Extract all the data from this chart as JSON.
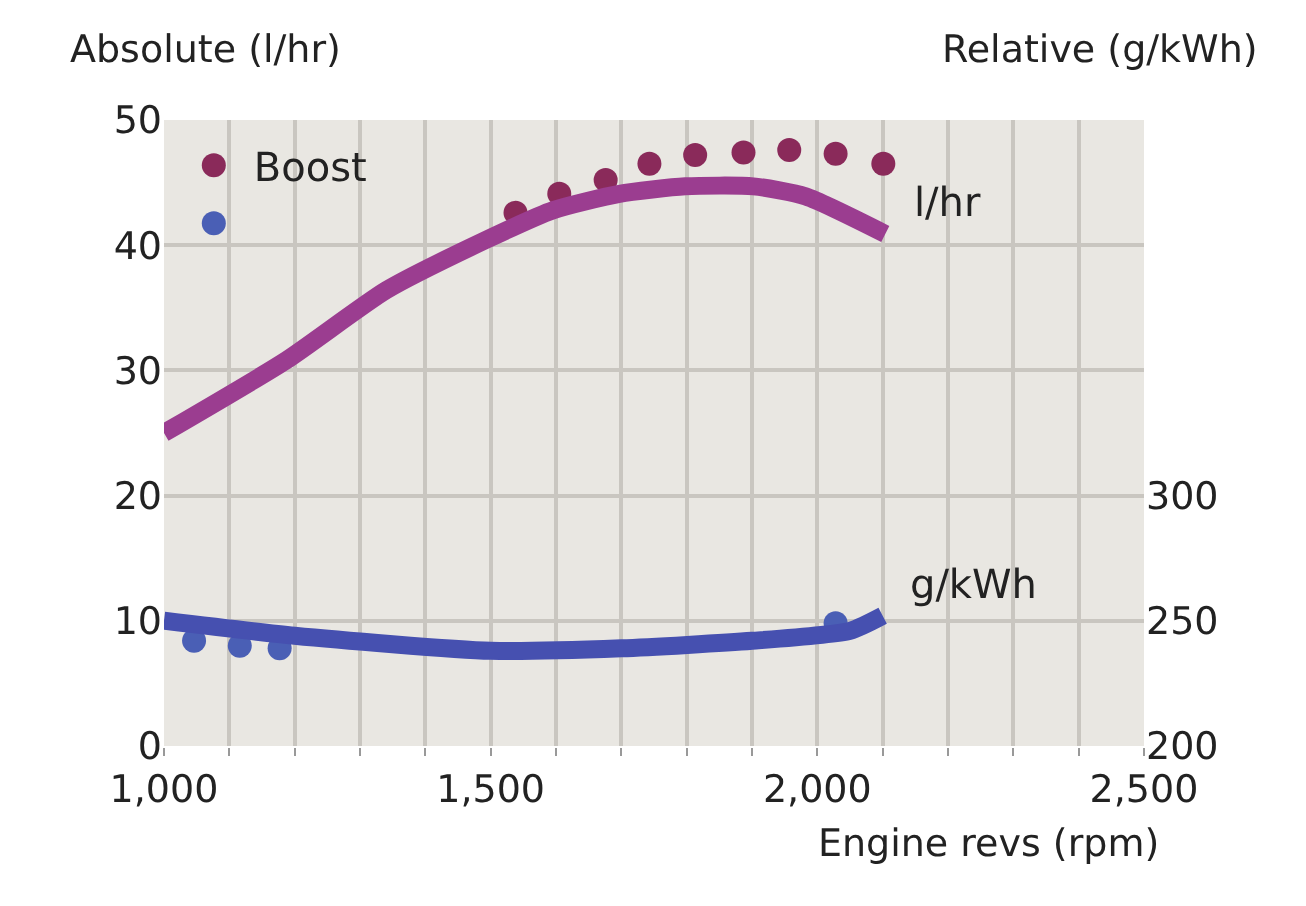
{
  "chart_data": {
    "type": "line",
    "ylabel": "Absolute (l/hr)",
    "y2label": "Relative (g/kWh)",
    "xlabel": "Engine revs (rpm)",
    "xlim": [
      1000,
      2500
    ],
    "xticks": [
      {
        "value": 1000,
        "label": "1,000"
      },
      {
        "value": 1100,
        "label": null
      },
      {
        "value": 1200,
        "label": null
      },
      {
        "value": 1300,
        "label": null
      },
      {
        "value": 1400,
        "label": null
      },
      {
        "value": 1500,
        "label": "1,500"
      },
      {
        "value": 1600,
        "label": null
      },
      {
        "value": 1700,
        "label": null
      },
      {
        "value": 1800,
        "label": null
      },
      {
        "value": 1900,
        "label": null
      },
      {
        "value": 2000,
        "label": "2,000"
      },
      {
        "value": 2100,
        "label": null
      },
      {
        "value": 2200,
        "label": null
      },
      {
        "value": 2300,
        "label": null
      },
      {
        "value": 2400,
        "label": null
      },
      {
        "value": 2500,
        "label": "2,500"
      }
    ],
    "ylim": [
      0,
      50
    ],
    "yticks": [
      0,
      10,
      20,
      30,
      40,
      50
    ],
    "y2lim": [
      200,
      450
    ],
    "y2ticks": [
      200,
      250,
      300
    ],
    "grid": true,
    "legend": "top left",
    "series": [
      {
        "name": "Boost",
        "type": "scatter",
        "marker": "circle",
        "color": "#8a2a5a",
        "x": [
          1538,
          1605,
          1676,
          1743,
          1813,
          1887,
          1957,
          2028,
          2101
        ],
        "values": [
          42.6,
          44.1,
          45.2,
          46.5,
          47.2,
          47.4,
          47.6,
          47.3,
          46.5
        ]
      },
      {
        "type": "scatter",
        "marker": "circle",
        "axis": "y2",
        "color": "#4a5fb5",
        "x": [
          1046,
          1116,
          1177,
          2028
        ],
        "values": [
          242,
          240,
          239,
          249
        ]
      },
      {
        "name": "l/hr",
        "line_style": "solid",
        "color": "#9b3d90",
        "x": [
          1000,
          1187,
          1340,
          1492,
          1596,
          1697,
          1798,
          1902,
          1982,
          2104
        ],
        "values": [
          25,
          30.8,
          36.4,
          40.4,
          42.8,
          44.1,
          44.7,
          44.7,
          43.9,
          40.9
        ]
      },
      {
        "name": "g/kWh",
        "line_style": "solid",
        "axis": "y2",
        "color": "#4650b0",
        "x": [
          1000,
          1200,
          1500,
          1700,
          1900,
          2050,
          2100
        ],
        "values": [
          250,
          244,
          238,
          239,
          242,
          246,
          252
        ]
      }
    ]
  }
}
